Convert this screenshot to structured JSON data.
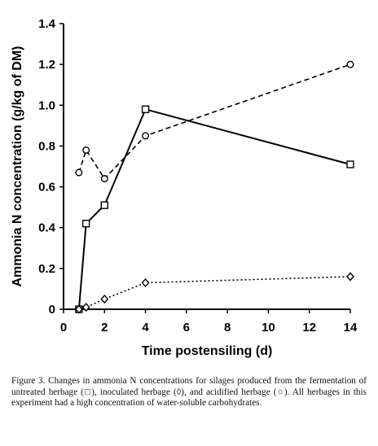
{
  "chart_data": {
    "type": "line",
    "xlabel": "Time postensiling (d)",
    "ylabel": "Ammonia N concentration (g/kg of DM)",
    "xlim": [
      0,
      14
    ],
    "ylim": [
      0,
      1.4
    ],
    "x_ticks": [
      0,
      2,
      4,
      6,
      8,
      10,
      12,
      14
    ],
    "y_ticks": [
      0,
      0.2,
      0.4,
      0.6,
      0.8,
      1.0,
      1.2,
      1.4
    ],
    "y_tick_labels": [
      "0",
      "0.2",
      "0.4",
      "0.6",
      "0.8",
      "1.0",
      "1.2",
      "1.4"
    ],
    "grid": false,
    "legend": "none",
    "series": [
      {
        "marker": "square",
        "line_style": "solid",
        "x": [
          0.75,
          1.1,
          2,
          4,
          14
        ],
        "y": [
          0.0,
          0.42,
          0.51,
          0.98,
          0.71
        ]
      },
      {
        "marker": "circle",
        "line_style": "dashed",
        "x": [
          0.75,
          1.1,
          2,
          4,
          14
        ],
        "y": [
          0.67,
          0.78,
          0.64,
          0.85,
          1.2
        ]
      },
      {
        "marker": "diamond",
        "line_style": "dotted",
        "x": [
          0.75,
          1.1,
          2,
          4,
          14
        ],
        "y": [
          0.0,
          0.01,
          0.05,
          0.13,
          0.16
        ]
      }
    ]
  },
  "caption": "Figure 3. Changes in ammonia N concentrations for silages produced from the fermentation of untreated herbage (□), inoculated herbage (◊), and acidified herbage (○). All herbages in this experiment had a high concentration of water-soluble carbohydrates."
}
